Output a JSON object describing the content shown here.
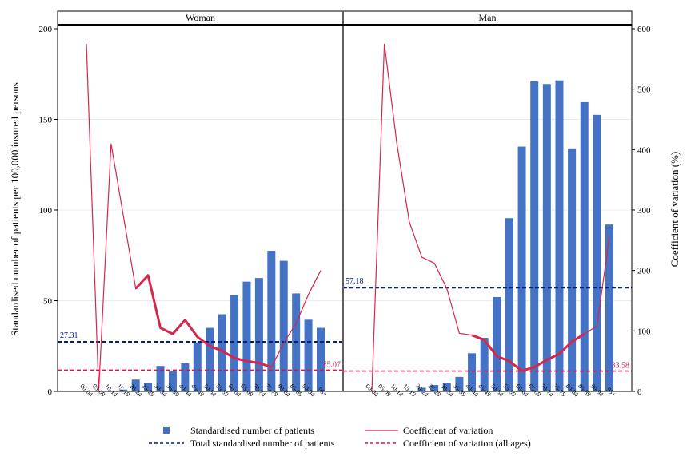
{
  "chart_data": {
    "type": "bar",
    "title": "",
    "ylabel": "Standardised number of patients per 100,000 insured persons",
    "y2label": "Coefficient of variation (%)",
    "ylim": [
      0,
      200
    ],
    "y2lim": [
      0,
      600
    ],
    "yticks": [
      "0",
      "50",
      "100",
      "150",
      "200"
    ],
    "y2ticks": [
      "0",
      "100",
      "200",
      "300",
      "400",
      "500",
      "600"
    ],
    "categories": [
      "00-04",
      "05-09",
      "10-14",
      "15-19",
      "20-24",
      "25-29",
      "30-34",
      "35-39",
      "40-44",
      "45-49",
      "50-54",
      "55-59",
      "60-64",
      "65-69",
      "70-74",
      "75-79",
      "80-84",
      "85-89",
      "90-94",
      "95+"
    ],
    "legend": {
      "bars": "Standardised number of patients",
      "cv": "Coefficient of variation",
      "total": "Total standardised number of patients",
      "cv_all": "Coefficient of variation (all ages)"
    },
    "panels": [
      {
        "name": "Woman",
        "bars": [
          0,
          0,
          0.4,
          1,
          6.5,
          4.5,
          14,
          11,
          15.5,
          27,
          35,
          42.5,
          53,
          60.5,
          62.5,
          77.5,
          72,
          54,
          39.5,
          35
        ],
        "cv": [
          575,
          0,
          410,
          290,
          170,
          192,
          105,
          95,
          118,
          90,
          75,
          67,
          55,
          50,
          47,
          40,
          80,
          112,
          160,
          200
        ],
        "bold_from": 4,
        "bold_to": 15,
        "total": 27.31,
        "total_label": "27.31",
        "cv_all": 35.07,
        "cv_all_label": "35.07"
      },
      {
        "name": "Man",
        "bars": [
          0,
          0,
          0,
          0.5,
          2,
          3.5,
          4.5,
          8,
          21,
          29.5,
          52,
          95.5,
          135,
          171,
          169.5,
          171.5,
          134,
          159.5,
          152.5,
          92
        ],
        "cv": [
          0,
          575,
          410,
          280,
          222,
          212,
          170,
          96,
          93,
          85,
          58,
          50,
          34,
          40,
          52,
          62,
          82,
          95,
          108,
          255
        ],
        "bold_from": 8,
        "bold_to": 17,
        "total": 57.18,
        "total_label": "57.18",
        "cv_all": 33.58,
        "cv_all_label": "33.58"
      }
    ],
    "colors": {
      "bar": "#4472c4",
      "cv": "#d7264d",
      "total": "#002080",
      "cv_all": "#c81e4e",
      "axis": "#000000",
      "grid": "#ececec"
    }
  }
}
